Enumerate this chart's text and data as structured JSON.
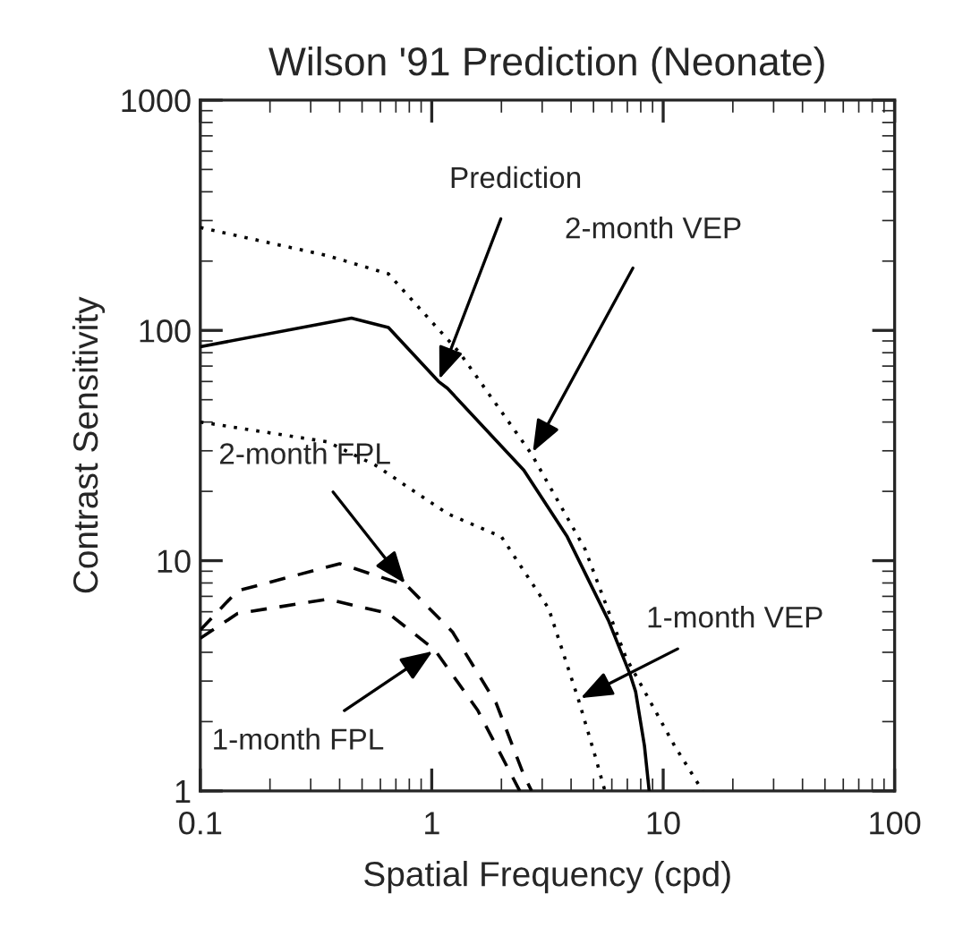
{
  "chart_data": {
    "type": "line",
    "title": "Wilson '91 Prediction (Neonate)",
    "xlabel": "Spatial Frequency (cpd)",
    "ylabel": "Contrast Sensitivity",
    "log": "xy",
    "grid": false,
    "marker": "none",
    "xlim": [
      0.1,
      100
    ],
    "xticks": [
      0.1,
      1,
      10,
      100
    ],
    "ylim": [
      1,
      1000
    ],
    "yticks": [
      1,
      10,
      100,
      1000
    ],
    "series": [
      {
        "color": "#000000",
        "line_style": "solid",
        "x": [
          0.1,
          0.45,
          0.65,
          1.07,
          1.17,
          2.5,
          3.85,
          5.8,
          7.2,
          7.6,
          8.3,
          8.7
        ],
        "values": [
          85,
          113,
          103,
          60,
          56,
          24.7,
          12.7,
          5.5,
          3.2,
          2.7,
          1.57,
          1
        ]
      },
      {
        "color": "#000000",
        "line_style": "dotted",
        "x": [
          0.1,
          0.355,
          0.65,
          1.32,
          2.7,
          4.6,
          6.9,
          11.2,
          14.8
        ],
        "values": [
          280,
          211,
          176,
          80,
          29,
          11.2,
          3.8,
          1.57,
          1
        ]
      },
      {
        "color": "#000000",
        "line_style": "dotted",
        "x": [
          0.1,
          0.355,
          0.57,
          1.17,
          2.0,
          3.2,
          4.3,
          5.1,
          5.6
        ],
        "values": [
          40,
          32.8,
          26,
          16,
          12.7,
          6.2,
          2.5,
          1.4,
          1
        ]
      },
      {
        "color": "#000000",
        "line_style": "dashed",
        "x": [
          0.1,
          0.145,
          0.4,
          0.78,
          1.23,
          1.9,
          2.5,
          2.7
        ],
        "values": [
          5,
          7.4,
          9.7,
          7.8,
          4.9,
          2.4,
          1.17,
          1
        ]
      },
      {
        "color": "#000000",
        "line_style": "dashed",
        "x": [
          0.1,
          0.145,
          0.355,
          0.65,
          1.03,
          1.58,
          2.4
        ],
        "values": [
          4.6,
          5.9,
          6.8,
          5.9,
          4.1,
          2.24,
          1
        ]
      }
    ],
    "annotations": [
      {
        "text": "Prediction",
        "x": 1.07,
        "y": 60
      },
      {
        "text": "2-month VEP",
        "x": 2.7,
        "y": 29
      },
      {
        "text": "1-month VEP",
        "x": 4.3,
        "y": 2.5
      },
      {
        "text": "2-month FPL",
        "x": 0.78,
        "y": 7.8
      },
      {
        "text": "1-month FPL",
        "x": 1.03,
        "y": 4.1
      }
    ]
  }
}
